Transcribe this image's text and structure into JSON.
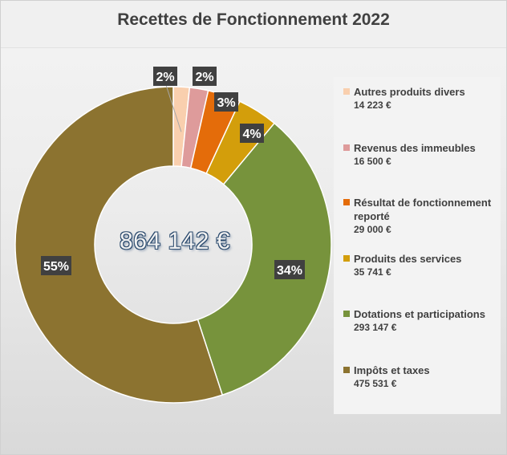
{
  "chart_data": {
    "type": "pie",
    "title": "Recettes de Fonctionnement 2022",
    "total_label": "864 142 €",
    "legend_placement": "right",
    "categories": [
      "Autres produits divers",
      "Revenus des immeubles",
      "Résultat de fonctionnement reporté",
      "Produits des services",
      "Dotations et participations",
      "Impôts et taxes"
    ],
    "values": [
      14223,
      16500,
      29000,
      35741,
      293147,
      475531
    ],
    "value_labels": [
      "14 223 €",
      "16 500 €",
      "29 000 €",
      "35 741  €",
      "293 147 €",
      "475 531 €"
    ],
    "percent_labels": [
      "2%",
      "2%",
      "3%",
      "4%",
      "34%",
      "55%"
    ],
    "colors": [
      "#f9cfae",
      "#de9b9b",
      "#e46c0a",
      "#d39e0b",
      "#77933c",
      "#8c7330"
    ]
  }
}
